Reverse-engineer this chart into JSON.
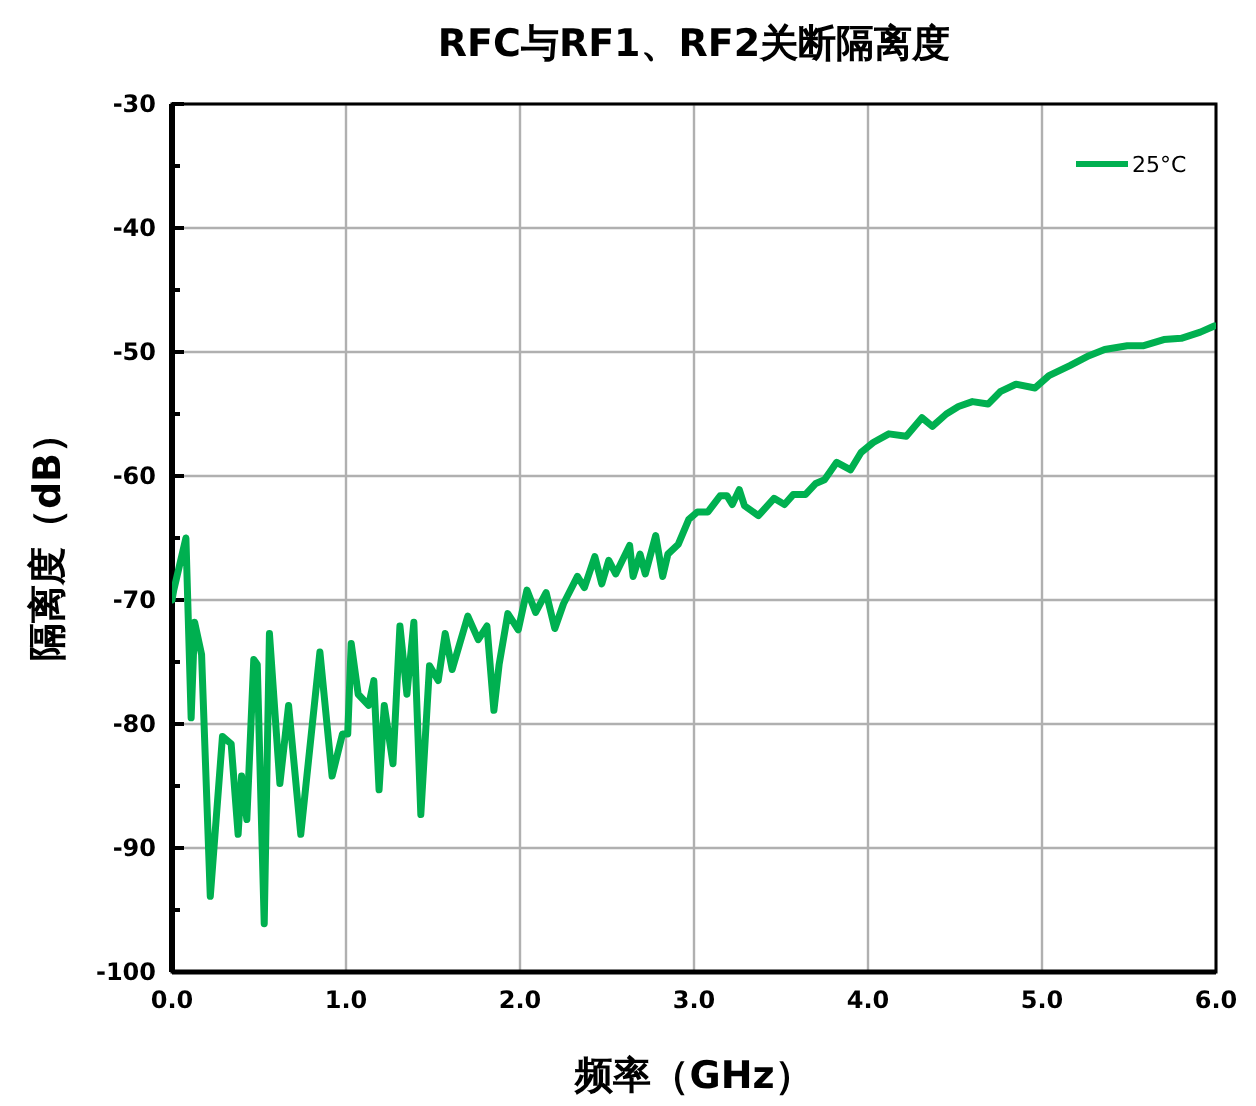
{
  "chart_data": {
    "type": "line",
    "title": "RFC与RF1、RF2关断隔离度",
    "xlabel": "频率（GHz）",
    "ylabel": "隔离度（dB）",
    "xlim": [
      0,
      6
    ],
    "xticks": [
      {
        "value": 0,
        "label": "0.0"
      },
      {
        "value": 1,
        "label": "1.0"
      },
      {
        "value": 2,
        "label": "2.0"
      },
      {
        "value": 3,
        "label": "3.0"
      },
      {
        "value": 4,
        "label": "4.0"
      },
      {
        "value": 5,
        "label": "5.0"
      },
      {
        "value": 6,
        "label": "6.0"
      }
    ],
    "ylim": [
      -100,
      -30
    ],
    "yticks": [
      -100,
      {
        "value": -95,
        "label": null
      },
      -90,
      {
        "value": -85,
        "label": null
      },
      -80,
      {
        "value": -75,
        "label": null
      },
      -70,
      {
        "value": -65,
        "label": null
      },
      -60,
      {
        "value": -55,
        "label": null
      },
      -50,
      {
        "value": -45,
        "label": null
      },
      -40,
      {
        "value": -35,
        "label": null
      },
      -30
    ],
    "grid": true,
    "legend": "top right",
    "marker": "none",
    "line_style": "solid",
    "series": [
      {
        "name": "25°C",
        "color": "#00b050",
        "x": [
          0,
          0.01,
          0.08,
          0.11,
          0.13,
          0.17,
          0.22,
          0.29,
          0.34,
          0.38,
          0.4,
          0.43,
          0.47,
          0.49,
          0.53,
          0.56,
          0.62,
          0.67,
          0.74,
          0.85,
          0.92,
          0.98,
          1.01,
          1.03,
          1.07,
          1.13,
          1.16,
          1.19,
          1.22,
          1.27,
          1.31,
          1.35,
          1.39,
          1.43,
          1.48,
          1.53,
          1.57,
          1.61,
          1.7,
          1.76,
          1.81,
          1.85,
          1.88,
          1.93,
          1.99,
          2.04,
          2.09,
          2.15,
          2.2,
          2.25,
          2.33,
          2.37,
          2.43,
          2.47,
          2.51,
          2.55,
          2.63,
          2.65,
          2.69,
          2.72,
          2.78,
          2.82,
          2.85,
          2.91,
          2.97,
          3.02,
          3.08,
          3.15,
          3.19,
          3.22,
          3.26,
          3.29,
          3.37,
          3.46,
          3.52,
          3.57,
          3.64,
          3.7,
          3.75,
          3.82,
          3.9,
          3.96,
          4.03,
          4.12,
          4.22,
          4.31,
          4.37,
          4.45,
          4.52,
          4.6,
          4.69,
          4.76,
          4.85,
          4.96,
          5.04,
          5.16,
          5.27,
          5.36,
          5.49,
          5.58,
          5.7,
          5.8,
          5.91,
          5.99
        ],
        "values": [
          -70,
          -69.2,
          -65.0,
          -79.5,
          -71.8,
          -74.4,
          -93.9,
          -81.0,
          -81.6,
          -88.9,
          -84.2,
          -87.7,
          -74.8,
          -75.2,
          -96.1,
          -72.7,
          -84.8,
          -78.5,
          -88.9,
          -74.2,
          -84.2,
          -80.8,
          -80.8,
          -73.5,
          -77.6,
          -78.5,
          -76.5,
          -85.3,
          -78.5,
          -83.2,
          -72.1,
          -77.6,
          -71.8,
          -87.3,
          -75.3,
          -76.5,
          -72.7,
          -75.6,
          -71.3,
          -73.2,
          -72.1,
          -78.9,
          -75.2,
          -71.1,
          -72.4,
          -69.2,
          -71.0,
          -69.4,
          -72.3,
          -70.3,
          -68.1,
          -69.0,
          -66.5,
          -68.7,
          -66.8,
          -67.9,
          -65.6,
          -68.1,
          -66.3,
          -67.9,
          -64.8,
          -68.1,
          -66.3,
          -65.5,
          -63.5,
          -62.9,
          -62.9,
          -61.6,
          -61.6,
          -62.3,
          -61.1,
          -62.4,
          -63.2,
          -61.8,
          -62.3,
          -61.5,
          -61.5,
          -60.6,
          -60.3,
          -58.9,
          -59.5,
          -58.1,
          -57.3,
          -56.6,
          -56.8,
          -55.3,
          -56.0,
          -55.0,
          -54.4,
          -54.0,
          -54.2,
          -53.2,
          -52.6,
          -52.9,
          -51.9,
          -51.1,
          -50.3,
          -49.8,
          -49.5,
          -49.5,
          -49.0,
          -48.9,
          -48.4,
          -47.9
        ]
      }
    ]
  }
}
